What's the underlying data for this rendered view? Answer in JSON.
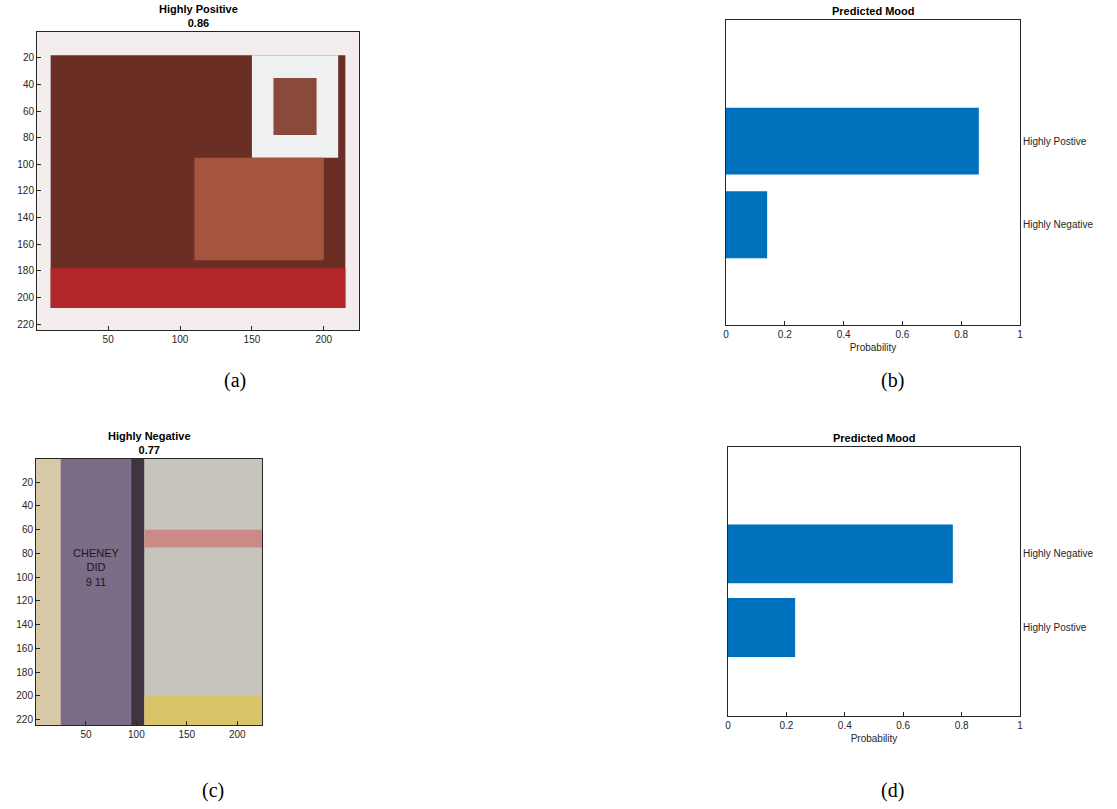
{
  "chart_data": [
    {
      "type": "image",
      "title": "Highly Positive",
      "score": 0.86,
      "label": "(a)",
      "xlim": [
        0.5,
        224.5
      ],
      "ylim": [
        0.5,
        224.5
      ],
      "xticks": [
        50,
        100,
        150,
        200
      ],
      "yticks": [
        20,
        40,
        60,
        80,
        100,
        120,
        140,
        160,
        180,
        200,
        220
      ]
    },
    {
      "type": "bar",
      "orientation": "horizontal",
      "title": "Predicted Mood",
      "x_label": "Probability",
      "label": "(b)",
      "categories": [
        "Highly Postive",
        "Highly Negative"
      ],
      "values": [
        0.86,
        0.14
      ],
      "color": "#0072bd",
      "xlim": [
        0,
        1
      ],
      "xticks": [
        0,
        0.2,
        0.4,
        0.6,
        0.8,
        1
      ]
    },
    {
      "type": "image",
      "title": "Highly Negative",
      "score": 0.77,
      "label": "(c)",
      "image_text": [
        "CHENEY",
        "DID",
        "9 11"
      ],
      "xlim": [
        0.5,
        224.5
      ],
      "ylim": [
        0.5,
        224.5
      ],
      "xticks": [
        50,
        100,
        150,
        200
      ],
      "yticks": [
        20,
        40,
        60,
        80,
        100,
        120,
        140,
        160,
        180,
        200,
        220
      ]
    },
    {
      "type": "bar",
      "orientation": "horizontal",
      "title": "Predicted Mood",
      "x_label": "Probability",
      "label": "(d)",
      "categories": [
        "Highly Negative",
        "Highly Postive"
      ],
      "values": [
        0.77,
        0.23
      ],
      "color": "#0072bd",
      "xlim": [
        0,
        1
      ],
      "xticks": [
        0,
        0.2,
        0.4,
        0.6,
        0.8,
        1
      ]
    }
  ]
}
